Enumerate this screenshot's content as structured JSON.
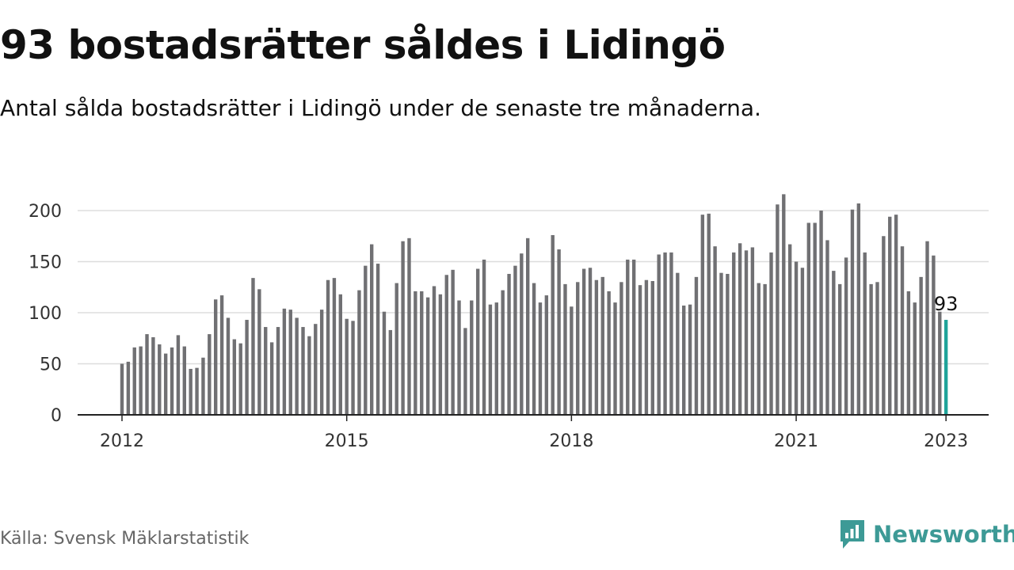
{
  "header": {
    "title": "93 bostadsrätter såldes i Lidingö",
    "subtitle": "Antal sålda bostadsrätter i Lidingö under de senaste tre månaderna."
  },
  "footer": {
    "source": "Källa: Svensk Mäklarstatistik",
    "brand": "Newsworthy",
    "brand_icon": "newsworthy-logo-icon"
  },
  "colors": {
    "bar": "#707073",
    "highlight": "#1fa39a",
    "grid": "#dddddd",
    "axis": "#222222",
    "brand": "#3d9a96"
  },
  "chart_data": {
    "type": "bar",
    "xlabel": "",
    "ylabel": "",
    "ylim": [
      0,
      220
    ],
    "yticks": [
      0,
      50,
      100,
      150,
      200
    ],
    "grid": true,
    "legend": "none",
    "start": "2012-01",
    "xticks": [
      "2012",
      "2015",
      "2018",
      "2021",
      "2023"
    ],
    "highlight_label": "93",
    "values": [
      50,
      52,
      66,
      67,
      79,
      76,
      69,
      60,
      66,
      78,
      67,
      45,
      46,
      56,
      79,
      113,
      117,
      95,
      74,
      70,
      93,
      134,
      123,
      86,
      71,
      86,
      104,
      103,
      95,
      86,
      77,
      89,
      103,
      132,
      134,
      118,
      94,
      92,
      122,
      146,
      167,
      148,
      101,
      83,
      129,
      170,
      173,
      121,
      121,
      115,
      126,
      118,
      137,
      142,
      112,
      85,
      112,
      143,
      152,
      108,
      110,
      122,
      138,
      146,
      158,
      173,
      129,
      110,
      117,
      176,
      162,
      128,
      106,
      130,
      143,
      144,
      132,
      135,
      121,
      110,
      130,
      152,
      152,
      127,
      132,
      131,
      157,
      159,
      159,
      139,
      107,
      108,
      135,
      196,
      197,
      165,
      139,
      138,
      159,
      168,
      161,
      164,
      129,
      128,
      159,
      206,
      216,
      167,
      150,
      144,
      188,
      188,
      200,
      171,
      141,
      128,
      154,
      201,
      207,
      159,
      128,
      130,
      175,
      194,
      196,
      165,
      121,
      110,
      135,
      170,
      156,
      101,
      93
    ]
  }
}
